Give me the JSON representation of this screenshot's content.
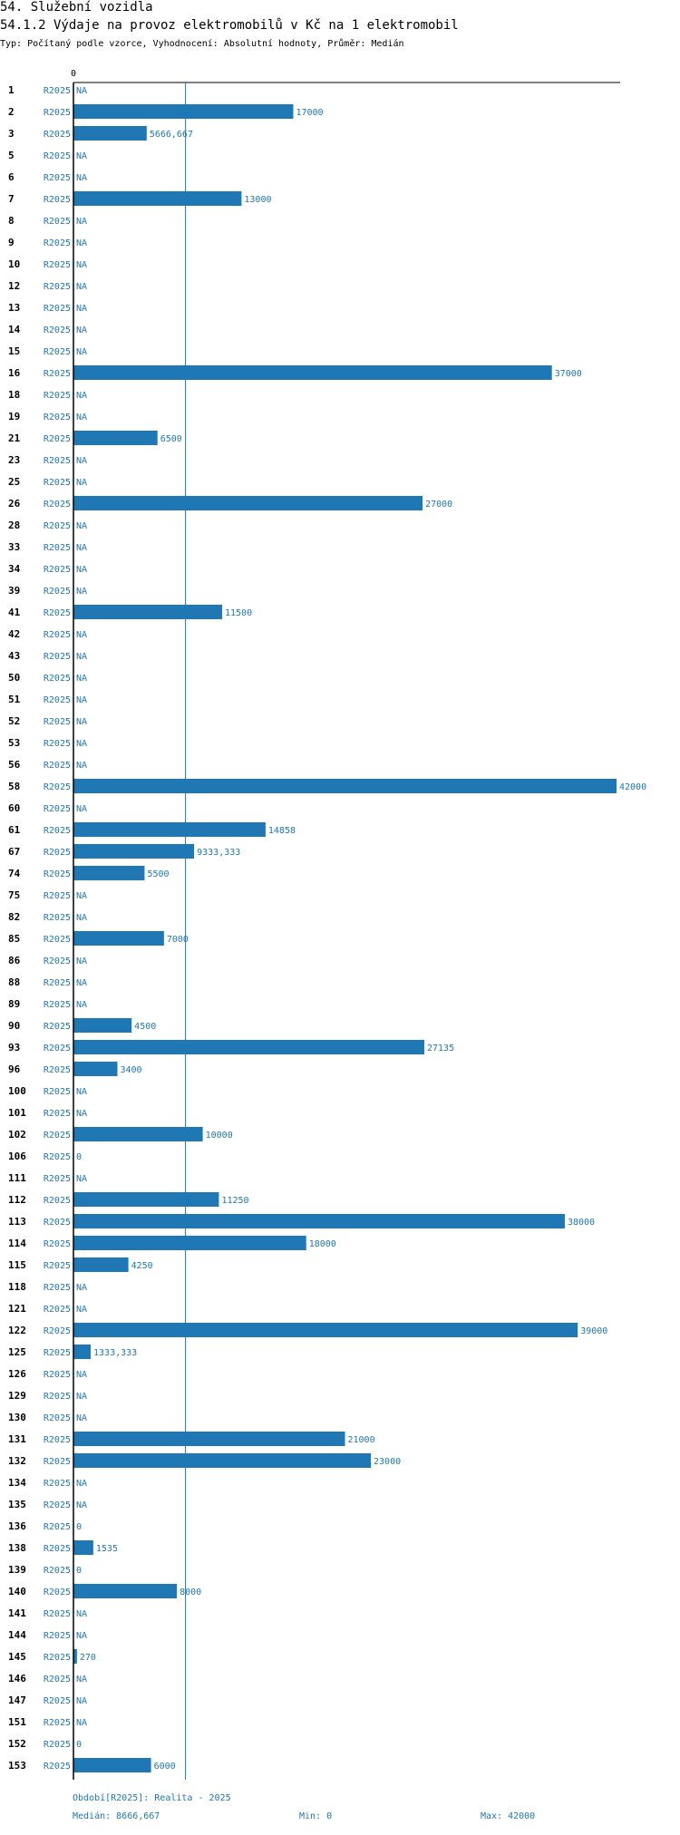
{
  "header": {
    "title": "54. Služební vozidla",
    "subtitle": "54.1.2 Výdaje na provoz elektromobilů v Kč na 1 elektromobil",
    "info": "Typ: Počítaný podle vzorce, Vyhodnocení: Absolutní hodnoty, Průměr: Medián"
  },
  "chart_data": {
    "type": "bar",
    "orientation": "horizontal",
    "axis_tick_label": "0",
    "series_label": "R2025",
    "na_label": "NA",
    "xlim": [
      0,
      42000
    ],
    "reference_line": 8666.667,
    "categories": [
      "1",
      "2",
      "3",
      "5",
      "6",
      "7",
      "8",
      "9",
      "10",
      "12",
      "13",
      "14",
      "15",
      "16",
      "18",
      "19",
      "21",
      "23",
      "25",
      "26",
      "28",
      "33",
      "34",
      "39",
      "41",
      "42",
      "43",
      "50",
      "51",
      "52",
      "53",
      "56",
      "58",
      "60",
      "61",
      "67",
      "74",
      "75",
      "82",
      "85",
      "86",
      "88",
      "89",
      "90",
      "93",
      "96",
      "100",
      "101",
      "102",
      "106",
      "111",
      "112",
      "113",
      "114",
      "115",
      "118",
      "121",
      "122",
      "125",
      "126",
      "129",
      "130",
      "131",
      "132",
      "134",
      "135",
      "136",
      "138",
      "139",
      "140",
      "141",
      "144",
      "145",
      "146",
      "147",
      "151",
      "152",
      "153"
    ],
    "values": [
      null,
      17000,
      5666.667,
      null,
      null,
      13000,
      null,
      null,
      null,
      null,
      null,
      null,
      null,
      37000,
      null,
      null,
      6500,
      null,
      null,
      27000,
      null,
      null,
      null,
      null,
      11500,
      null,
      null,
      null,
      null,
      null,
      null,
      null,
      42000,
      null,
      14858,
      9333.333,
      5500,
      null,
      null,
      7000,
      null,
      null,
      null,
      4500,
      27135,
      3400,
      null,
      null,
      10000,
      0,
      null,
      11250,
      38000,
      18000,
      4250,
      null,
      null,
      39000,
      1333.333,
      null,
      null,
      null,
      21000,
      23000,
      null,
      null,
      0,
      1535,
      0,
      8000,
      null,
      null,
      270,
      null,
      null,
      null,
      0,
      6000
    ],
    "value_labels": [
      "NA",
      "17000",
      "5666,667",
      "NA",
      "NA",
      "13000",
      "NA",
      "NA",
      "NA",
      "NA",
      "NA",
      "NA",
      "NA",
      "37000",
      "NA",
      "NA",
      "6500",
      "NA",
      "NA",
      "27000",
      "NA",
      "NA",
      "NA",
      "NA",
      "11500",
      "NA",
      "NA",
      "NA",
      "NA",
      "NA",
      "NA",
      "NA",
      "42000",
      "NA",
      "14858",
      "9333,333",
      "5500",
      "NA",
      "NA",
      "7000",
      "NA",
      "NA",
      "NA",
      "4500",
      "27135",
      "3400",
      "NA",
      "NA",
      "10000",
      "0",
      "NA",
      "11250",
      "38000",
      "18000",
      "4250",
      "NA",
      "NA",
      "39000",
      "1333,333",
      "NA",
      "NA",
      "NA",
      "21000",
      "23000",
      "NA",
      "NA",
      "0",
      "1535",
      "0",
      "8000",
      "NA",
      "NA",
      "270",
      "NA",
      "NA",
      "NA",
      "0",
      "6000"
    ]
  },
  "footer": {
    "period": "Období[R2025]: Realita - 2025",
    "median": "Medián: 8666,667",
    "min": "Min: 0",
    "max": "Max: 42000"
  },
  "colors": {
    "bar": "#1f77b4",
    "text": "#1f77b4",
    "axis": "#000000"
  }
}
